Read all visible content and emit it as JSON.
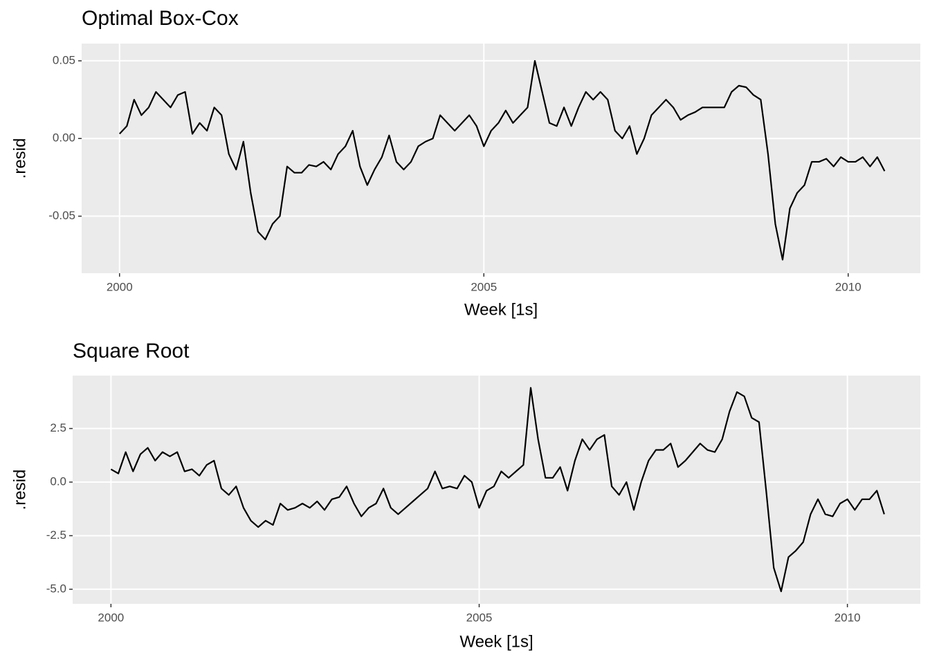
{
  "chart_data": [
    {
      "type": "line",
      "title": "Optimal Box-Cox",
      "x_label": "Week [1s]",
      "y_label": ".resid",
      "xlim": [
        1999.48,
        2010.99
      ],
      "xticks": [
        2000,
        2005,
        2010
      ],
      "ylim": [
        -0.0867,
        0.0611
      ],
      "yticks": [
        -0.05,
        {
          "value": 0,
          "label": "0.00"
        },
        0.05
      ],
      "grid": true,
      "color": "#000000",
      "x": [
        2000,
        2000.1,
        2000.2,
        2000.3,
        2000.4,
        2000.5,
        2000.6,
        2000.7,
        2000.8,
        2000.9,
        2001,
        2001.1,
        2001.2,
        2001.3,
        2001.4,
        2001.5,
        2001.6,
        2001.7,
        2001.8,
        2001.9,
        2002,
        2002.1,
        2002.2,
        2002.3,
        2002.4,
        2002.5,
        2002.6,
        2002.7,
        2002.8,
        2002.9,
        2003,
        2003.1,
        2003.2,
        2003.3,
        2003.4,
        2003.5,
        2003.6,
        2003.7,
        2003.8,
        2003.9,
        2004,
        2004.1,
        2004.2,
        2004.3,
        2004.4,
        2004.5,
        2004.6,
        2004.7,
        2004.8,
        2004.9,
        2005,
        2005.1,
        2005.2,
        2005.3,
        2005.4,
        2005.5,
        2005.6,
        2005.7,
        2005.8,
        2005.9,
        2006,
        2006.1,
        2006.2,
        2006.3,
        2006.4,
        2006.5,
        2006.6,
        2006.7,
        2006.8,
        2006.9,
        2007,
        2007.1,
        2007.2,
        2007.3,
        2007.4,
        2007.5,
        2007.6,
        2007.7,
        2007.8,
        2007.9,
        2008,
        2008.1,
        2008.2,
        2008.3,
        2008.4,
        2008.5,
        2008.6,
        2008.7,
        2008.8,
        2008.9,
        2009,
        2009.1,
        2009.2,
        2009.3,
        2009.4,
        2009.5,
        2009.6,
        2009.7,
        2009.8,
        2009.9,
        2010,
        2010.1,
        2010.2,
        2010.3,
        2010.4,
        2010.5
      ],
      "values": [
        0.003,
        0.008,
        0.025,
        0.015,
        0.02,
        0.03,
        0.025,
        0.02,
        0.028,
        0.03,
        0.003,
        0.01,
        0.005,
        0.02,
        0.015,
        -0.01,
        -0.02,
        -0.002,
        -0.035,
        -0.06,
        -0.065,
        -0.055,
        -0.05,
        -0.018,
        -0.022,
        -0.022,
        -0.017,
        -0.018,
        -0.015,
        -0.02,
        -0.01,
        -0.005,
        0.005,
        -0.018,
        -0.03,
        -0.02,
        -0.012,
        0.002,
        -0.015,
        -0.02,
        -0.015,
        -0.005,
        -0.002,
        0.0,
        0.015,
        0.01,
        0.005,
        0.01,
        0.015,
        0.008,
        -0.005,
        0.005,
        0.01,
        0.018,
        0.01,
        0.015,
        0.02,
        0.05,
        0.03,
        0.01,
        0.008,
        0.02,
        0.008,
        0.02,
        0.03,
        0.025,
        0.03,
        0.025,
        0.005,
        0.0,
        0.008,
        -0.01,
        0.0,
        0.015,
        0.02,
        0.025,
        0.02,
        0.012,
        0.015,
        0.017,
        0.02,
        0.02,
        0.02,
        0.02,
        0.03,
        0.034,
        0.033,
        0.028,
        0.025,
        -0.01,
        -0.055,
        -0.078,
        -0.045,
        -0.035,
        -0.03,
        -0.015,
        -0.015,
        -0.013,
        -0.018,
        -0.012,
        -0.015,
        -0.015,
        -0.012,
        -0.018,
        -0.012,
        -0.021
      ]
    },
    {
      "type": "line",
      "title": "Square Root",
      "x_label": "Week [1s]",
      "y_label": ".resid",
      "xlim": [
        1999.48,
        2010.99
      ],
      "xticks": [
        2000,
        2005,
        2010
      ],
      "ylim": [
        -5.68,
        4.97
      ],
      "yticks": [
        {
          "value": -5,
          "label": "-5.0"
        },
        -2.5,
        {
          "value": 0,
          "label": "0.0"
        },
        2.5
      ],
      "grid": true,
      "color": "#000000",
      "x": [
        2000,
        2000.1,
        2000.2,
        2000.3,
        2000.4,
        2000.5,
        2000.6,
        2000.7,
        2000.8,
        2000.9,
        2001,
        2001.1,
        2001.2,
        2001.3,
        2001.4,
        2001.5,
        2001.6,
        2001.7,
        2001.8,
        2001.9,
        2002,
        2002.1,
        2002.2,
        2002.3,
        2002.4,
        2002.5,
        2002.6,
        2002.7,
        2002.8,
        2002.9,
        2003,
        2003.1,
        2003.2,
        2003.3,
        2003.4,
        2003.5,
        2003.6,
        2003.7,
        2003.8,
        2003.9,
        2004,
        2004.1,
        2004.2,
        2004.3,
        2004.4,
        2004.5,
        2004.6,
        2004.7,
        2004.8,
        2004.9,
        2005,
        2005.1,
        2005.2,
        2005.3,
        2005.4,
        2005.5,
        2005.6,
        2005.7,
        2005.8,
        2005.9,
        2006,
        2006.1,
        2006.2,
        2006.3,
        2006.4,
        2006.5,
        2006.6,
        2006.7,
        2006.8,
        2006.9,
        2007,
        2007.1,
        2007.2,
        2007.3,
        2007.4,
        2007.5,
        2007.6,
        2007.7,
        2007.8,
        2007.9,
        2008,
        2008.1,
        2008.2,
        2008.3,
        2008.4,
        2008.5,
        2008.6,
        2008.7,
        2008.8,
        2008.9,
        2009,
        2009.1,
        2009.2,
        2009.3,
        2009.4,
        2009.5,
        2009.6,
        2009.7,
        2009.8,
        2009.9,
        2010,
        2010.1,
        2010.2,
        2010.3,
        2010.4,
        2010.5
      ],
      "values": [
        0.6,
        0.4,
        1.4,
        0.5,
        1.3,
        1.6,
        1.0,
        1.4,
        1.2,
        1.4,
        0.5,
        0.6,
        0.3,
        0.8,
        1.0,
        -0.3,
        -0.6,
        -0.2,
        -1.2,
        -1.8,
        -2.1,
        -1.8,
        -2.0,
        -1.0,
        -1.3,
        -1.2,
        -1.0,
        -1.2,
        -0.9,
        -1.3,
        -0.8,
        -0.7,
        -0.2,
        -1.0,
        -1.6,
        -1.2,
        -1.0,
        -0.3,
        -1.2,
        -1.5,
        -1.2,
        -0.9,
        -0.6,
        -0.3,
        0.5,
        -0.3,
        -0.2,
        -0.3,
        0.3,
        0.0,
        -1.2,
        -0.4,
        -0.2,
        0.5,
        0.2,
        0.5,
        0.8,
        4.4,
        2.0,
        0.2,
        0.2,
        0.7,
        -0.4,
        1.0,
        2.0,
        1.5,
        2.0,
        2.2,
        -0.2,
        -0.6,
        0.0,
        -1.3,
        0.0,
        1.0,
        1.5,
        1.5,
        1.8,
        0.7,
        1.0,
        1.4,
        1.8,
        1.5,
        1.4,
        2.0,
        3.3,
        4.2,
        4.0,
        3.0,
        2.8,
        -0.5,
        -4.0,
        -5.1,
        -3.5,
        -3.2,
        -2.8,
        -1.5,
        -0.8,
        -1.5,
        -1.6,
        -1.0,
        -0.8,
        -1.3,
        -0.8,
        -0.8,
        -0.4,
        -1.5
      ]
    }
  ]
}
